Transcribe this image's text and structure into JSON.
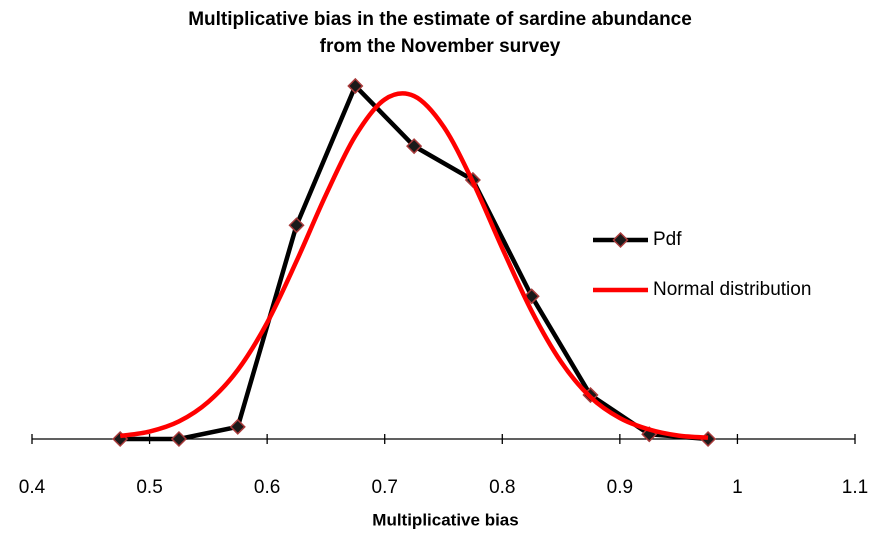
{
  "chart_data": {
    "type": "line",
    "title": "Multiplicative bias in the estimate of sardine abundance from the November survey",
    "xlabel": "Multiplicative bias",
    "xlim": [
      0.4,
      1.1
    ],
    "xticks": [
      0.4,
      0.5,
      0.6,
      0.7,
      0.8,
      0.9,
      1,
      1.1
    ],
    "ylim": [
      0,
      5.5
    ],
    "legend": "right",
    "series": [
      {
        "name": "Pdf",
        "color": "#000000",
        "marker": "diamond",
        "marker_color": "#1a1a1a",
        "marker_edge": "#a83a3a",
        "smooth": false,
        "x": [
          0.475,
          0.525,
          0.575,
          0.625,
          0.675,
          0.725,
          0.775,
          0.825,
          0.875,
          0.925,
          0.975
        ],
        "values": [
          0,
          0,
          0.18,
          3.16,
          5.22,
          4.33,
          3.83,
          2.11,
          0.65,
          0.07,
          0
        ]
      },
      {
        "name": "Normal distribution",
        "color": "#ff0000",
        "smooth": true,
        "x": [
          0.475,
          0.5,
          0.525,
          0.55,
          0.575,
          0.6,
          0.625,
          0.65,
          0.675,
          0.7,
          0.725,
          0.75,
          0.775,
          0.8,
          0.825,
          0.85,
          0.875,
          0.9,
          0.925,
          0.95,
          0.975
        ],
        "values": [
          0.045,
          0.11,
          0.26,
          0.55,
          1.02,
          1.72,
          2.63,
          3.61,
          4.48,
          5.02,
          5.07,
          4.62,
          3.8,
          2.82,
          1.89,
          1.14,
          0.62,
          0.31,
          0.14,
          0.05,
          0.02
        ]
      }
    ]
  }
}
